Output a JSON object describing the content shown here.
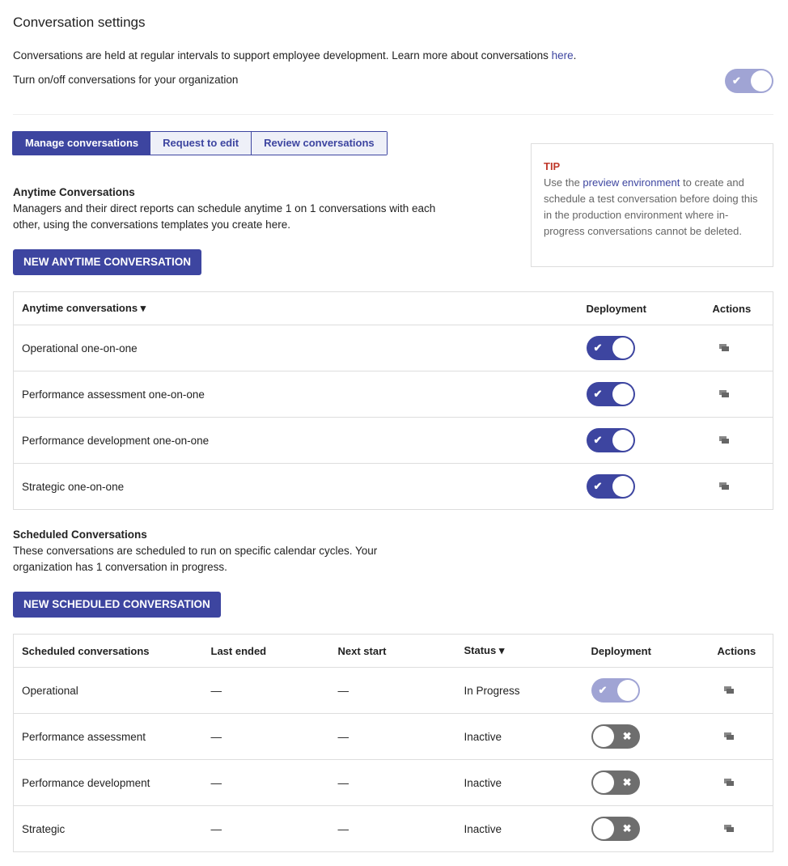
{
  "title": "Conversation settings",
  "intro": {
    "text": "Conversations are held at regular intervals to support employee development. Learn more about conversations ",
    "link": "here",
    "after": "."
  },
  "org_toggle": {
    "label": "Turn on/off conversations for your organization",
    "state": "on-disabled"
  },
  "tabs": [
    {
      "label": "Manage conversations",
      "active": true
    },
    {
      "label": "Request to edit"
    },
    {
      "label": "Review conversations"
    }
  ],
  "tip": {
    "label": "TIP",
    "pre": "Use the ",
    "link": "preview environment",
    "post": " to create and schedule a test conversation before doing this in the production environment where in-progress conversations cannot be deleted."
  },
  "anytime": {
    "heading": "Anytime Conversations",
    "desc": "Managers and their direct reports can schedule anytime 1 on 1 conversations with each other, using the conversations templates you create here.",
    "button": "NEW ANYTIME CONVERSATION",
    "columns": [
      "Anytime conversations",
      "Deployment",
      "Actions"
    ],
    "rows": [
      {
        "name": "Operational one-on-one",
        "deployed": true
      },
      {
        "name": "Performance assessment one-on-one",
        "deployed": true
      },
      {
        "name": "Performance development one-on-one",
        "deployed": true
      },
      {
        "name": "Strategic one-on-one",
        "deployed": true
      }
    ]
  },
  "scheduled": {
    "heading": "Scheduled Conversations",
    "desc": "These conversations are scheduled to run on specific calendar cycles. Your organization has 1 conversation in progress.",
    "button": "NEW SCHEDULED CONVERSATION",
    "columns": [
      "Scheduled conversations",
      "Last ended",
      "Next start",
      "Status",
      "Deployment",
      "Actions"
    ],
    "rows": [
      {
        "name": "Operational",
        "last": "—",
        "next": "—",
        "status": "In Progress",
        "deployment": "on-disabled"
      },
      {
        "name": "Performance assessment",
        "last": "—",
        "next": "—",
        "status": "Inactive",
        "deployment": "off"
      },
      {
        "name": "Performance development",
        "last": "—",
        "next": "—",
        "status": "Inactive",
        "deployment": "off"
      },
      {
        "name": "Strategic",
        "last": "—",
        "next": "—",
        "status": "Inactive",
        "deployment": "off"
      }
    ]
  },
  "icons": {
    "check": "✔",
    "cross": "✖",
    "sort": "chevron-down-icon",
    "action": "copy-icon"
  },
  "colors": {
    "primary": "#3d45a0",
    "disabled": "#a0a4d4",
    "off": "#6e6e6e",
    "tip": "#c0392b"
  }
}
